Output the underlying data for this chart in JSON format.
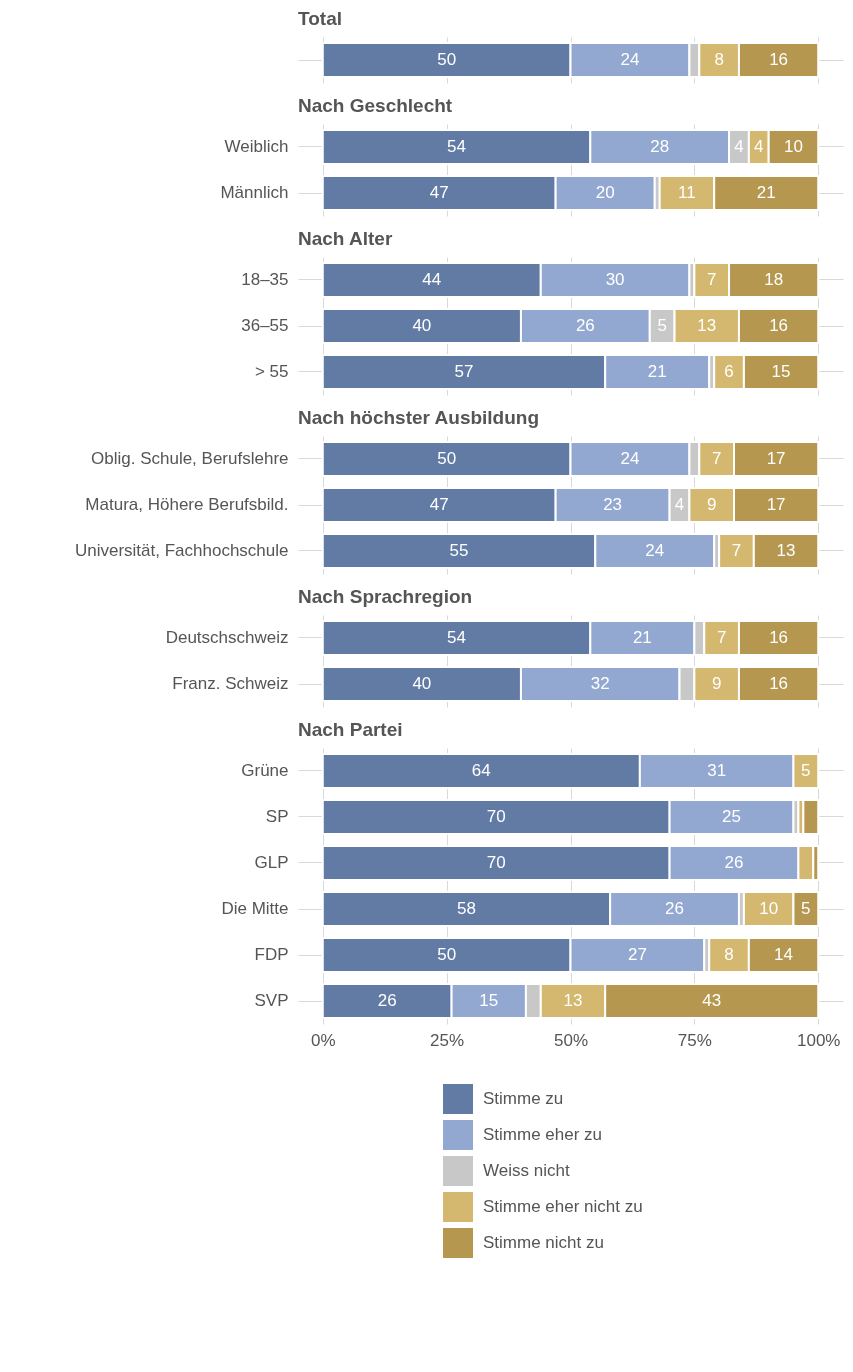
{
  "chart_data": [
    {
      "type": "bar",
      "title": "Total",
      "orientation": "horizontal",
      "stacked": true,
      "categories": [
        null
      ],
      "xlim": [
        -5,
        105
      ],
      "xticks": [
        0,
        25,
        50,
        75,
        100
      ],
      "grid": true,
      "tick_labels": false,
      "series": [
        {
          "color": "#627ba5",
          "values": [
            50
          ],
          "value_labels": [
            "50"
          ]
        },
        {
          "color": "#92a8d1",
          "values": [
            24
          ],
          "value_labels": [
            "24"
          ]
        },
        {
          "color": "#c8c8c8",
          "values": [
            2
          ],
          "value_labels": [
            null
          ]
        },
        {
          "color": "#d4b870",
          "values": [
            8
          ],
          "value_labels": [
            "8"
          ]
        },
        {
          "color": "#b5974f",
          "values": [
            16
          ],
          "value_labels": [
            "16"
          ]
        }
      ]
    },
    {
      "type": "bar",
      "title": "Nach Geschlecht",
      "orientation": "horizontal",
      "stacked": true,
      "categories": [
        "Weiblich",
        "Männlich"
      ],
      "xlim": [
        -5,
        105
      ],
      "xticks": [
        0,
        25,
        50,
        75,
        100
      ],
      "grid": true,
      "tick_labels": "y",
      "series": [
        {
          "color": "#627ba5",
          "values": [
            54,
            47
          ],
          "value_labels": [
            "54",
            "47"
          ]
        },
        {
          "color": "#92a8d1",
          "values": [
            28,
            20
          ],
          "value_labels": [
            "28",
            "20"
          ]
        },
        {
          "color": "#c8c8c8",
          "values": [
            4,
            1
          ],
          "value_labels": [
            "4",
            null
          ]
        },
        {
          "color": "#d4b870",
          "values": [
            4,
            11
          ],
          "value_labels": [
            "4",
            "11"
          ]
        },
        {
          "color": "#b5974f",
          "values": [
            10,
            21
          ],
          "value_labels": [
            "10",
            "21"
          ]
        }
      ]
    },
    {
      "type": "bar",
      "title": "Nach Alter",
      "orientation": "horizontal",
      "stacked": true,
      "categories": [
        "18–35",
        "36–55",
        "> 55"
      ],
      "xlim": [
        -5,
        105
      ],
      "xticks": [
        0,
        25,
        50,
        75,
        100
      ],
      "grid": true,
      "tick_labels": "y",
      "series": [
        {
          "color": "#627ba5",
          "values": [
            44,
            40,
            57
          ],
          "value_labels": [
            "44",
            "40",
            "57"
          ]
        },
        {
          "color": "#92a8d1",
          "values": [
            30,
            26,
            21
          ],
          "value_labels": [
            "30",
            "26",
            "21"
          ]
        },
        {
          "color": "#c8c8c8",
          "values": [
            1,
            5,
            1
          ],
          "value_labels": [
            null,
            "5",
            null
          ]
        },
        {
          "color": "#d4b870",
          "values": [
            7,
            13,
            6
          ],
          "value_labels": [
            "7",
            "13",
            "6"
          ]
        },
        {
          "color": "#b5974f",
          "values": [
            18,
            16,
            15
          ],
          "value_labels": [
            "18",
            "16",
            "15"
          ]
        }
      ]
    },
    {
      "type": "bar",
      "title": "Nach höchster Ausbildung",
      "orientation": "horizontal",
      "stacked": true,
      "categories": [
        "Oblig. Schule, Berufslehre",
        "Matura, Höhere Berufsbild.",
        "Universität, Fachhochschule"
      ],
      "xlim": [
        -5,
        105
      ],
      "xticks": [
        0,
        25,
        50,
        75,
        100
      ],
      "grid": true,
      "tick_labels": "y",
      "series": [
        {
          "color": "#627ba5",
          "values": [
            50,
            47,
            55
          ],
          "value_labels": [
            "50",
            "47",
            "55"
          ]
        },
        {
          "color": "#92a8d1",
          "values": [
            24,
            23,
            24
          ],
          "value_labels": [
            "24",
            "23",
            "24"
          ]
        },
        {
          "color": "#c8c8c8",
          "values": [
            2,
            4,
            1
          ],
          "value_labels": [
            null,
            "4",
            null
          ]
        },
        {
          "color": "#d4b870",
          "values": [
            7,
            9,
            7
          ],
          "value_labels": [
            "7",
            "9",
            "7"
          ]
        },
        {
          "color": "#b5974f",
          "values": [
            17,
            17,
            13
          ],
          "value_labels": [
            "17",
            "17",
            "13"
          ]
        }
      ]
    },
    {
      "type": "bar",
      "title": "Nach Sprachregion",
      "orientation": "horizontal",
      "stacked": true,
      "categories": [
        "Deutschschweiz",
        "Franz. Schweiz"
      ],
      "xlim": [
        -5,
        105
      ],
      "xticks": [
        0,
        25,
        50,
        75,
        100
      ],
      "grid": true,
      "tick_labels": "y",
      "series": [
        {
          "color": "#627ba5",
          "values": [
            54,
            40
          ],
          "value_labels": [
            "54",
            "40"
          ]
        },
        {
          "color": "#92a8d1",
          "values": [
            21,
            32
          ],
          "value_labels": [
            "21",
            "32"
          ]
        },
        {
          "color": "#c8c8c8",
          "values": [
            2,
            3
          ],
          "value_labels": [
            null,
            null
          ]
        },
        {
          "color": "#d4b870",
          "values": [
            7,
            9
          ],
          "value_labels": [
            "7",
            "9"
          ]
        },
        {
          "color": "#b5974f",
          "values": [
            16,
            16
          ],
          "value_labels": [
            "16",
            "16"
          ]
        }
      ]
    },
    {
      "type": "bar",
      "title": "Nach Partei",
      "orientation": "horizontal",
      "stacked": true,
      "categories": [
        "Grüne",
        "SP",
        "GLP",
        "Die Mitte",
        "FDP",
        "SVP"
      ],
      "xlim": [
        -5,
        105
      ],
      "xticks": [
        {
          "value": 0,
          "label": "0%"
        },
        {
          "value": 25,
          "label": "25%"
        },
        {
          "value": 50,
          "label": "50%"
        },
        {
          "value": 75,
          "label": "75%"
        },
        {
          "value": 100,
          "label": "100%"
        }
      ],
      "grid": true,
      "legend": "bottom",
      "series": [
        {
          "name": "Stimme zu",
          "color": "#627ba5",
          "values": [
            64,
            70,
            70,
            58,
            50,
            26
          ],
          "value_labels": [
            "64",
            "70",
            "70",
            "58",
            "50",
            "26"
          ]
        },
        {
          "name": "Stimme eher zu",
          "color": "#92a8d1",
          "values": [
            31,
            25,
            26,
            26,
            27,
            15
          ],
          "value_labels": [
            "31",
            "25",
            "26",
            "26",
            "27",
            "15"
          ]
        },
        {
          "name": "Weiss nicht",
          "color": "#c8c8c8",
          "values": [
            null,
            1,
            null,
            1,
            1,
            3
          ],
          "value_labels": [
            null,
            null,
            null,
            null,
            null,
            null
          ]
        },
        {
          "name": "Stimme eher nicht zu",
          "color": "#d4b870",
          "values": [
            5,
            1,
            3,
            10,
            8,
            13
          ],
          "value_labels": [
            "5",
            null,
            null,
            "10",
            "8",
            "13"
          ]
        },
        {
          "name": "Stimme nicht zu",
          "color": "#b5974f",
          "values": [
            null,
            3,
            1,
            5,
            14,
            43
          ],
          "value_labels": [
            null,
            null,
            null,
            "5",
            "14",
            "43"
          ]
        }
      ]
    }
  ]
}
